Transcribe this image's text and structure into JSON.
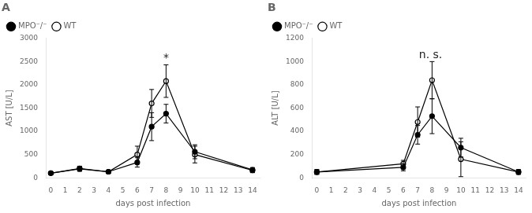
{
  "chart_data": [
    {
      "type": "line",
      "title": "A",
      "xlabel": "days post infection",
      "ylabel": "AST [U/L]",
      "xlim": [
        -0.3,
        14.5
      ],
      "xticks": [
        0,
        1,
        2,
        3,
        4,
        5,
        6,
        7,
        8,
        9,
        10,
        11,
        12,
        13,
        14
      ],
      "ylim": [
        0,
        3000
      ],
      "yticks": [
        0,
        500,
        1000,
        1500,
        2000,
        2500,
        3000
      ],
      "grid": false,
      "legend": "upper left",
      "annotations": [
        {
          "text": "*",
          "x": 8.0,
          "y": 2450
        }
      ],
      "series": [
        {
          "name": "MPO⁻/⁻",
          "color": "black",
          "marker": "circle",
          "x": [
            0,
            2,
            4,
            6,
            7,
            8,
            10,
            14
          ],
          "values": [
            100,
            200,
            130,
            330,
            1100,
            1380,
            560,
            170
          ],
          "errors": [
            30,
            50,
            30,
            100,
            300,
            200,
            150,
            50
          ]
        },
        {
          "name": "WT",
          "color": "black",
          "marker": "open_circle",
          "x": [
            0,
            2,
            4,
            6,
            7,
            8,
            10,
            14
          ],
          "values": [
            100,
            190,
            130,
            500,
            1600,
            2080,
            500,
            160
          ],
          "errors": [
            30,
            50,
            30,
            180,
            300,
            350,
            180,
            50
          ]
        }
      ]
    },
    {
      "type": "line",
      "title": "B",
      "xlabel": "days post infection",
      "ylabel": "ALT [U/L]",
      "xlim": [
        -0.3,
        14.5
      ],
      "xticks": [
        0,
        1,
        2,
        3,
        4,
        5,
        6,
        7,
        8,
        9,
        10,
        11,
        12,
        13,
        14
      ],
      "ylim": [
        0,
        1200
      ],
      "yticks": [
        0,
        200,
        400,
        600,
        800,
        1000,
        1200
      ],
      "grid": false,
      "legend": "upper left",
      "annotations": [
        {
          "text": "n. s.",
          "x": 7.9,
          "y": 1010
        }
      ],
      "series": [
        {
          "name": "MPO⁻/⁻",
          "color": "black",
          "marker": "circle",
          "x": [
            0,
            6,
            7,
            8,
            10,
            14
          ],
          "values": [
            50,
            90,
            370,
            530,
            260,
            50
          ],
          "errors": [
            20,
            30,
            80,
            150,
            80,
            20
          ]
        },
        {
          "name": "WT",
          "color": "black",
          "marker": "open_circle",
          "x": [
            0,
            6,
            7,
            8,
            10,
            14
          ],
          "values": [
            50,
            120,
            480,
            840,
            160,
            50
          ],
          "errors": [
            20,
            30,
            130,
            160,
            150,
            20
          ]
        }
      ]
    }
  ]
}
